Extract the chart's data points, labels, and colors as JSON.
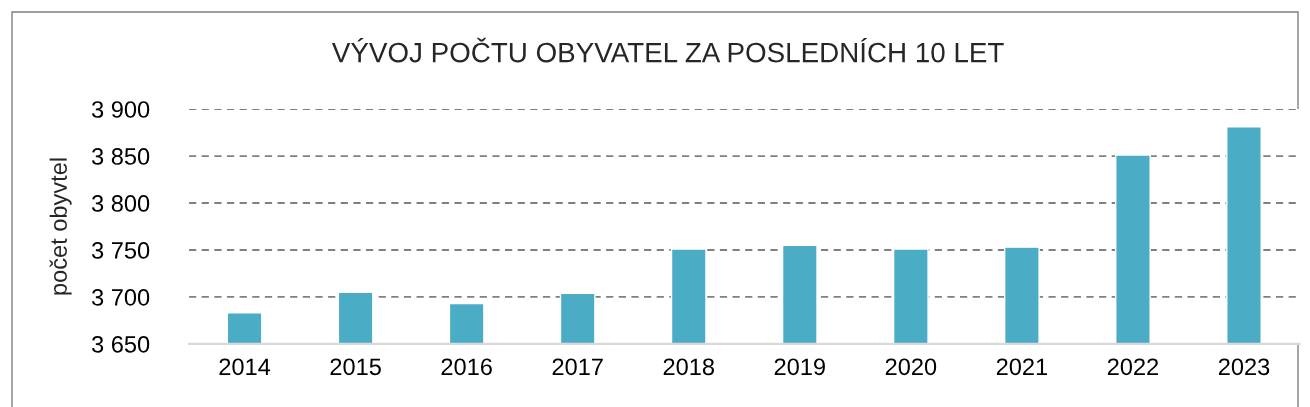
{
  "chart_data": {
    "type": "bar",
    "title": "VÝVOJ POČTU OBYVATEL ZA POSLEDNÍCH 10 LET",
    "ylabel": "počet obyvtel",
    "categories": [
      "2014",
      "2015",
      "2016",
      "2017",
      "2018",
      "2019",
      "2020",
      "2021",
      "2022",
      "2023"
    ],
    "values": [
      3683,
      3705,
      3693,
      3704,
      3751,
      3755,
      3751,
      3753,
      3851,
      3881
    ],
    "color": "#4bacc6",
    "ylim": [
      3650,
      3900
    ],
    "yticks": [
      {
        "value": 3650,
        "label": "3 650"
      },
      {
        "value": 3700,
        "label": "3 700"
      },
      {
        "value": 3750,
        "label": "3 750"
      },
      {
        "value": 3800,
        "label": "3 800"
      },
      {
        "value": 3850,
        "label": "3 850"
      },
      {
        "value": 3900,
        "label": "3 900"
      }
    ],
    "grid": "y"
  }
}
